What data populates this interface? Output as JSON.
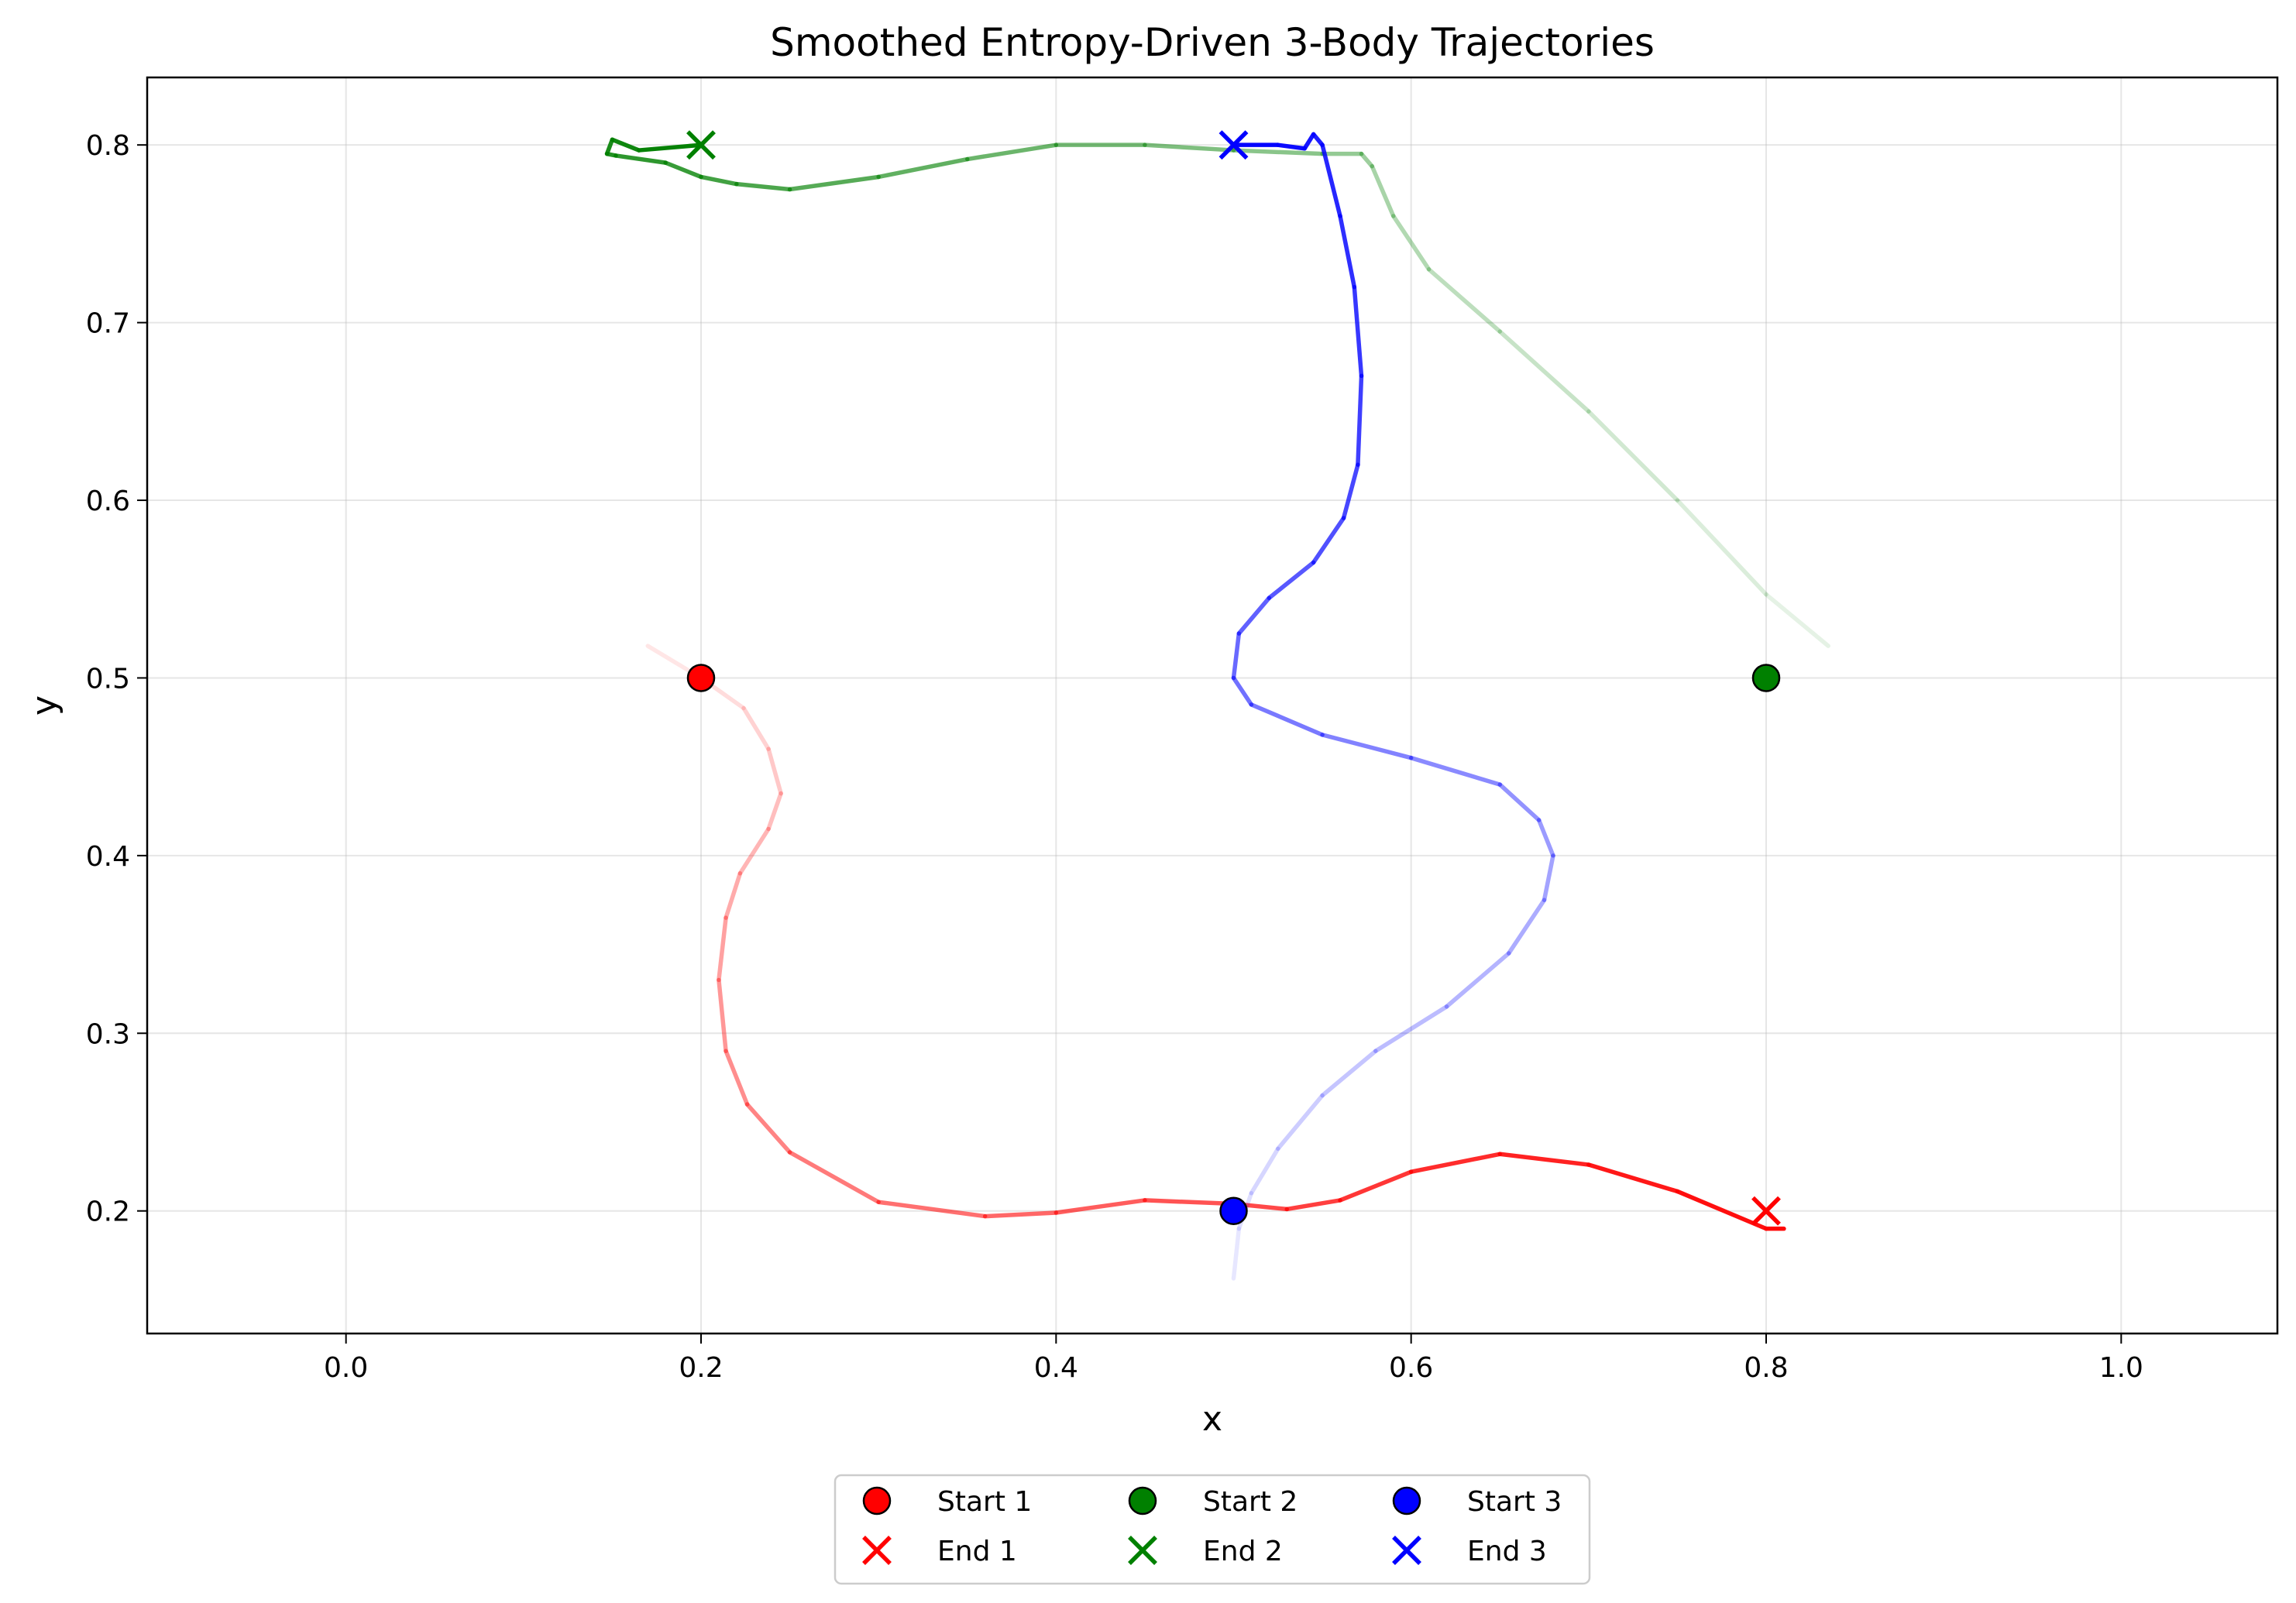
{
  "chart_data": {
    "type": "line",
    "title": "Smoothed Entropy-Driven 3-Body Trajectories",
    "xlabel": "x",
    "ylabel": "y",
    "xlim": [
      -0.112,
      1.088
    ],
    "ylim": [
      0.131,
      0.838
    ],
    "x_ticks": [
      0.0,
      0.2,
      0.4,
      0.6,
      0.8,
      1.0
    ],
    "x_tick_labels": [
      "0.0",
      "0.2",
      "0.4",
      "0.6",
      "0.8",
      "1.0"
    ],
    "y_ticks": [
      0.2,
      0.3,
      0.4,
      0.5,
      0.6,
      0.7,
      0.8
    ],
    "y_tick_labels": [
      "0.2",
      "0.3",
      "0.4",
      "0.5",
      "0.6",
      "0.7",
      "0.8"
    ],
    "grid": true,
    "legend_position": "bottom-center-outside",
    "legend_columns": 3,
    "series": [
      {
        "color": "#ff0000",
        "start_label": "Start 1",
        "end_label": "End 1",
        "start": [
          0.2,
          0.5
        ],
        "end": [
          0.8,
          0.2
        ],
        "points": [
          [
            0.17,
            0.518
          ],
          [
            0.2,
            0.5
          ],
          [
            0.224,
            0.483
          ],
          [
            0.238,
            0.46
          ],
          [
            0.245,
            0.435
          ],
          [
            0.238,
            0.415
          ],
          [
            0.222,
            0.39
          ],
          [
            0.214,
            0.365
          ],
          [
            0.21,
            0.33
          ],
          [
            0.214,
            0.29
          ],
          [
            0.226,
            0.26
          ],
          [
            0.25,
            0.233
          ],
          [
            0.3,
            0.205
          ],
          [
            0.36,
            0.197
          ],
          [
            0.4,
            0.199
          ],
          [
            0.45,
            0.206
          ],
          [
            0.5,
            0.204
          ],
          [
            0.53,
            0.201
          ],
          [
            0.56,
            0.206
          ],
          [
            0.6,
            0.222
          ],
          [
            0.65,
            0.232
          ],
          [
            0.7,
            0.226
          ],
          [
            0.75,
            0.211
          ],
          [
            0.8,
            0.19
          ],
          [
            0.81,
            0.19
          ]
        ]
      },
      {
        "color": "#008000",
        "start_label": "Start 2",
        "end_label": "End 2",
        "start": [
          0.8,
          0.5
        ],
        "end": [
          0.2,
          0.8
        ],
        "points": [
          [
            0.835,
            0.518
          ],
          [
            0.8,
            0.547
          ],
          [
            0.75,
            0.6
          ],
          [
            0.7,
            0.65
          ],
          [
            0.65,
            0.695
          ],
          [
            0.61,
            0.73
          ],
          [
            0.59,
            0.76
          ],
          [
            0.578,
            0.788
          ],
          [
            0.572,
            0.795
          ],
          [
            0.55,
            0.795
          ],
          [
            0.5,
            0.797
          ],
          [
            0.45,
            0.8
          ],
          [
            0.4,
            0.8
          ],
          [
            0.35,
            0.792
          ],
          [
            0.3,
            0.782
          ],
          [
            0.25,
            0.775
          ],
          [
            0.22,
            0.778
          ],
          [
            0.2,
            0.782
          ],
          [
            0.18,
            0.79
          ],
          [
            0.152,
            0.794
          ],
          [
            0.147,
            0.795
          ],
          [
            0.15,
            0.803
          ],
          [
            0.165,
            0.797
          ],
          [
            0.2,
            0.8
          ]
        ]
      },
      {
        "color": "#0000ff",
        "start_label": "Start 3",
        "end_label": "End 3",
        "start": [
          0.5,
          0.2
        ],
        "end": [
          0.5,
          0.8
        ],
        "points": [
          [
            0.5,
            0.162
          ],
          [
            0.503,
            0.19
          ],
          [
            0.51,
            0.21
          ],
          [
            0.525,
            0.235
          ],
          [
            0.55,
            0.265
          ],
          [
            0.58,
            0.29
          ],
          [
            0.62,
            0.315
          ],
          [
            0.655,
            0.345
          ],
          [
            0.675,
            0.375
          ],
          [
            0.68,
            0.4
          ],
          [
            0.672,
            0.42
          ],
          [
            0.65,
            0.44
          ],
          [
            0.6,
            0.455
          ],
          [
            0.55,
            0.468
          ],
          [
            0.51,
            0.485
          ],
          [
            0.5,
            0.5
          ],
          [
            0.503,
            0.525
          ],
          [
            0.52,
            0.545
          ],
          [
            0.545,
            0.565
          ],
          [
            0.562,
            0.59
          ],
          [
            0.57,
            0.62
          ],
          [
            0.572,
            0.67
          ],
          [
            0.568,
            0.72
          ],
          [
            0.56,
            0.76
          ],
          [
            0.55,
            0.8
          ],
          [
            0.545,
            0.806
          ],
          [
            0.54,
            0.798
          ],
          [
            0.525,
            0.8
          ],
          [
            0.5,
            0.8
          ]
        ]
      }
    ]
  }
}
